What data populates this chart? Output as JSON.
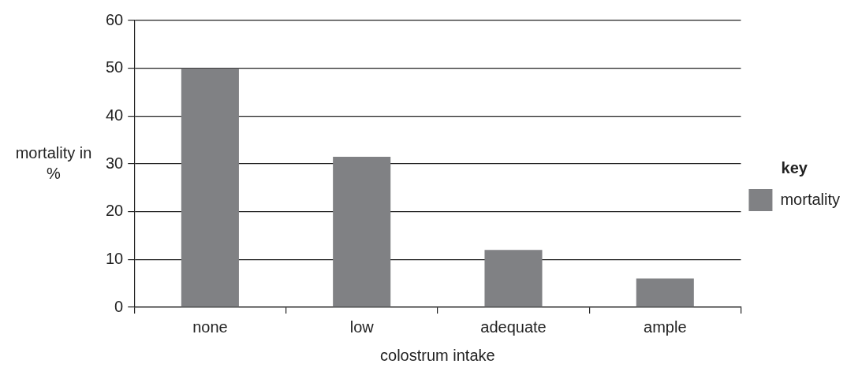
{
  "chart_data": {
    "type": "bar",
    "xlabel": "colostrum intake",
    "ylabel": "mortality in %",
    "legend_title": "key",
    "categories": [
      "none",
      "low",
      "adequate",
      "ample"
    ],
    "series": [
      {
        "name": "mortality",
        "color": "#808184",
        "values": [
          50,
          31.5,
          12,
          6
        ]
      }
    ],
    "ylim": [
      0,
      60
    ],
    "yticks": [
      0,
      10,
      20,
      30,
      40,
      50,
      60
    ],
    "grid": "y",
    "legend": "right"
  }
}
